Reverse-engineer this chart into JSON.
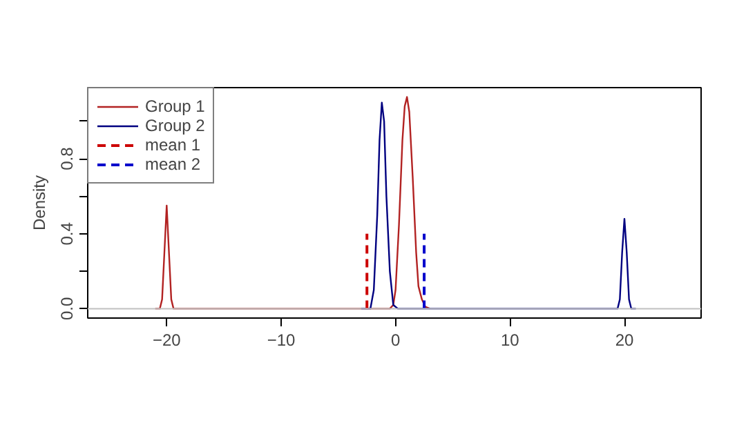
{
  "chart_data": {
    "type": "line",
    "ylabel": "Density",
    "xlim": [
      -26.9,
      26.7
    ],
    "ylim": [
      -0.05,
      1.18
    ],
    "xticks": [
      -20,
      -10,
      0,
      10,
      20
    ],
    "yticks": [
      {
        "value": 0,
        "label": "0.0"
      },
      {
        "value": 0.2,
        "label": null
      },
      {
        "value": 0.4,
        "label": "0.4"
      },
      {
        "value": 0.6,
        "label": null
      },
      {
        "value": 0.8,
        "label": "0.8"
      },
      {
        "value": 1.0,
        "label": null
      }
    ],
    "grid": false,
    "legend": "top left",
    "marker": "none",
    "ref_lines": [
      {
        "axis": "y",
        "value": 0,
        "color": "#c0c0c0"
      }
    ],
    "series": [
      {
        "name": "Group 1",
        "color": "#b22222",
        "line_style": "solid",
        "x": [
          -21,
          -20.6,
          -20.4,
          -20.2,
          -20,
          -19.8,
          -19.6,
          -19.4,
          -19,
          -0.5,
          -0.2,
          0,
          0.3,
          0.6,
          0.8,
          1,
          1.2,
          1.5,
          1.8,
          2,
          2.3,
          2.6,
          3
        ],
        "values": [
          0,
          0,
          0.05,
          0.3,
          0.55,
          0.3,
          0.05,
          0,
          0,
          0,
          0.02,
          0.1,
          0.45,
          0.9,
          1.08,
          1.13,
          1.05,
          0.7,
          0.3,
          0.12,
          0.05,
          0.01,
          0
        ]
      },
      {
        "name": "Group 2",
        "color": "#000080",
        "line_style": "solid",
        "x": [
          -3,
          -2.2,
          -1.9,
          -1.6,
          -1.4,
          -1.2,
          -1,
          -0.8,
          -0.5,
          -0.2,
          0.2,
          19,
          19.4,
          19.6,
          19.8,
          20,
          20.2,
          20.4,
          20.6,
          21
        ],
        "values": [
          0,
          0,
          0.1,
          0.5,
          0.9,
          1.1,
          1.0,
          0.6,
          0.2,
          0.02,
          0,
          0,
          0,
          0.05,
          0.3,
          0.48,
          0.3,
          0.05,
          0,
          0
        ]
      },
      {
        "name": "mean 1",
        "color": "#cc0000",
        "line_style": "dashed",
        "x": [
          -2.5,
          -2.5
        ],
        "values": [
          0,
          0.4
        ]
      },
      {
        "name": "mean 2",
        "color": "#0000cc",
        "line_style": "dashed",
        "x": [
          2.5,
          2.5
        ],
        "values": [
          0,
          0.4
        ]
      }
    ]
  }
}
